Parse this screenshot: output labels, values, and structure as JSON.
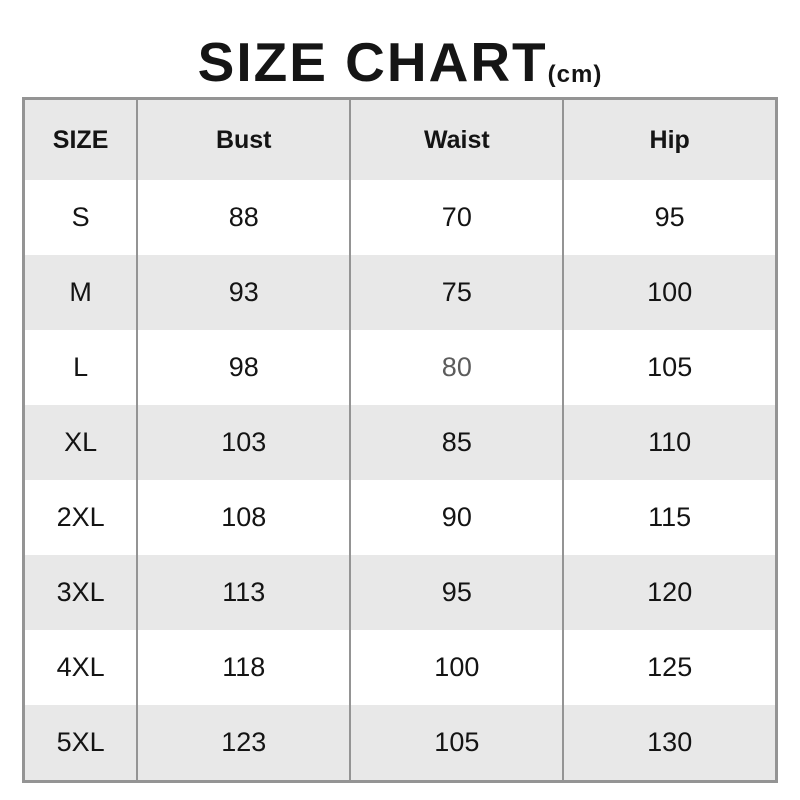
{
  "title": {
    "main": "SIZE CHART",
    "unit": "(cm)"
  },
  "colors": {
    "stripe": "#e8e8e8",
    "border": "#949494",
    "text": "#141414",
    "muted_value": "#5c5c5c"
  },
  "muted_cell": {
    "row_index": 2,
    "column_index": 2,
    "note": "L-row Waist value 80 rendered gray"
  },
  "chart_data": {
    "type": "table",
    "title": "SIZE CHART (cm)",
    "units": "cm",
    "columns": [
      "SIZE",
      "Bust",
      "Waist",
      "Hip"
    ],
    "rows": [
      [
        "S",
        88,
        70,
        95
      ],
      [
        "M",
        93,
        75,
        100
      ],
      [
        "L",
        98,
        80,
        105
      ],
      [
        "XL",
        103,
        85,
        110
      ],
      [
        "2XL",
        108,
        90,
        115
      ],
      [
        "3XL",
        113,
        95,
        120
      ],
      [
        "4XL",
        118,
        100,
        125
      ],
      [
        "5XL",
        123,
        105,
        130
      ]
    ]
  }
}
